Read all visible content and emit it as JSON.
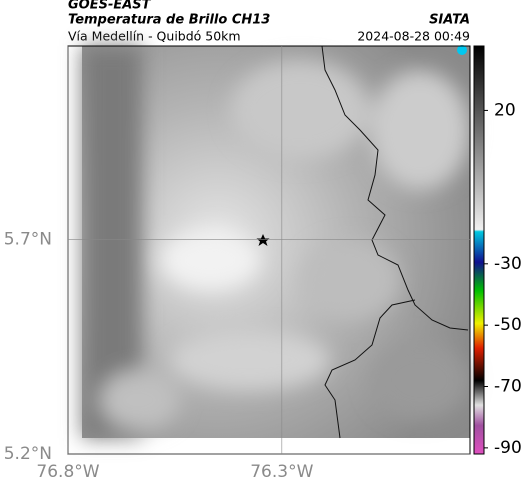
{
  "header": {
    "product": "GOES-EAST",
    "title": "Temperatura de Brillo CH13",
    "org": "SIATA",
    "subtitle": "Vía Medellín - Quibdó 50km",
    "timestamp": "2024-08-28 00:49"
  },
  "map": {
    "xlim": [
      -76.8,
      -75.86
    ],
    "ylim": [
      5.2,
      6.15
    ],
    "xticks": [
      {
        "value": -76.8,
        "label": "76.8°W"
      },
      {
        "value": -76.3,
        "label": "76.3°W"
      }
    ],
    "yticks": [
      {
        "value": 5.7,
        "label": "5.7°N"
      },
      {
        "value": 5.2,
        "label": "5.2°N"
      }
    ]
  },
  "colorbar": {
    "lim": [
      -92,
      41
    ],
    "ticks": [
      20,
      -30,
      -50,
      -70,
      -90
    ]
  }
}
